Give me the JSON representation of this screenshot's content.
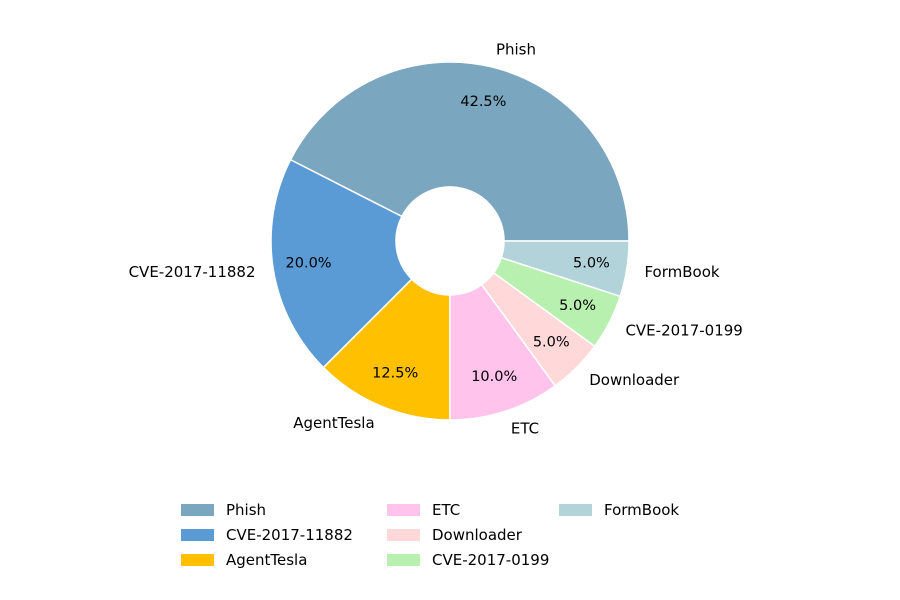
{
  "chart_data": {
    "type": "pie",
    "donut": true,
    "categories": [
      "Phish",
      "CVE-2017-11882",
      "AgentTesla",
      "ETC",
      "Downloader",
      "CVE-2017-0199",
      "FormBook"
    ],
    "values": [
      42.5,
      20.0,
      12.5,
      10.0,
      5.0,
      5.0,
      5.0
    ],
    "value_labels": [
      "42.5%",
      "20.0%",
      "12.5%",
      "10.0%",
      "5.0%",
      "5.0%",
      "5.0%"
    ],
    "colors": [
      "#7AA6BF",
      "#5B9BD5",
      "#FFC000",
      "#FFC3EC",
      "#FFD9D9",
      "#B8F0B0",
      "#B3D3DA"
    ],
    "start_angle_deg": 0,
    "direction": "counterclockwise",
    "legend": {
      "placement": "bottom",
      "columns": 3,
      "entries": [
        "Phish",
        "CVE-2017-11882",
        "AgentTesla",
        "ETC",
        "Downloader",
        "CVE-2017-0199",
        "FormBook"
      ]
    }
  }
}
